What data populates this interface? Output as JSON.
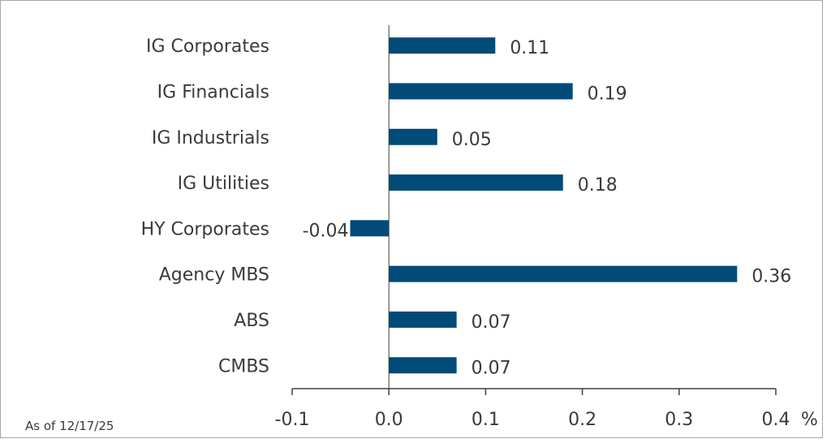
{
  "chart_data": {
    "type": "bar",
    "orientation": "horizontal",
    "categories": [
      "IG Corporates",
      "IG Financials",
      "IG Industrials",
      "IG Utilities",
      "HY Corporates",
      "Agency MBS",
      "ABS",
      "CMBS"
    ],
    "values": [
      0.11,
      0.19,
      0.05,
      0.18,
      -0.04,
      0.36,
      0.07,
      0.07
    ],
    "value_labels": [
      "0.11",
      "0.19",
      "0.05",
      "0.18",
      "-0.04",
      "0.36",
      "0.07",
      "0.07"
    ],
    "xlim": [
      -0.1,
      0.4
    ],
    "xticks": [
      -0.1,
      0.0,
      0.1,
      0.2,
      0.3,
      0.4
    ],
    "xtick_labels": [
      "-0.1",
      "0.0",
      "0.1",
      "0.2",
      "0.3",
      "0.4"
    ],
    "unit_label": "%",
    "footnote": "As of 12/17/25",
    "grid": false,
    "bar_color": "#004b78"
  }
}
